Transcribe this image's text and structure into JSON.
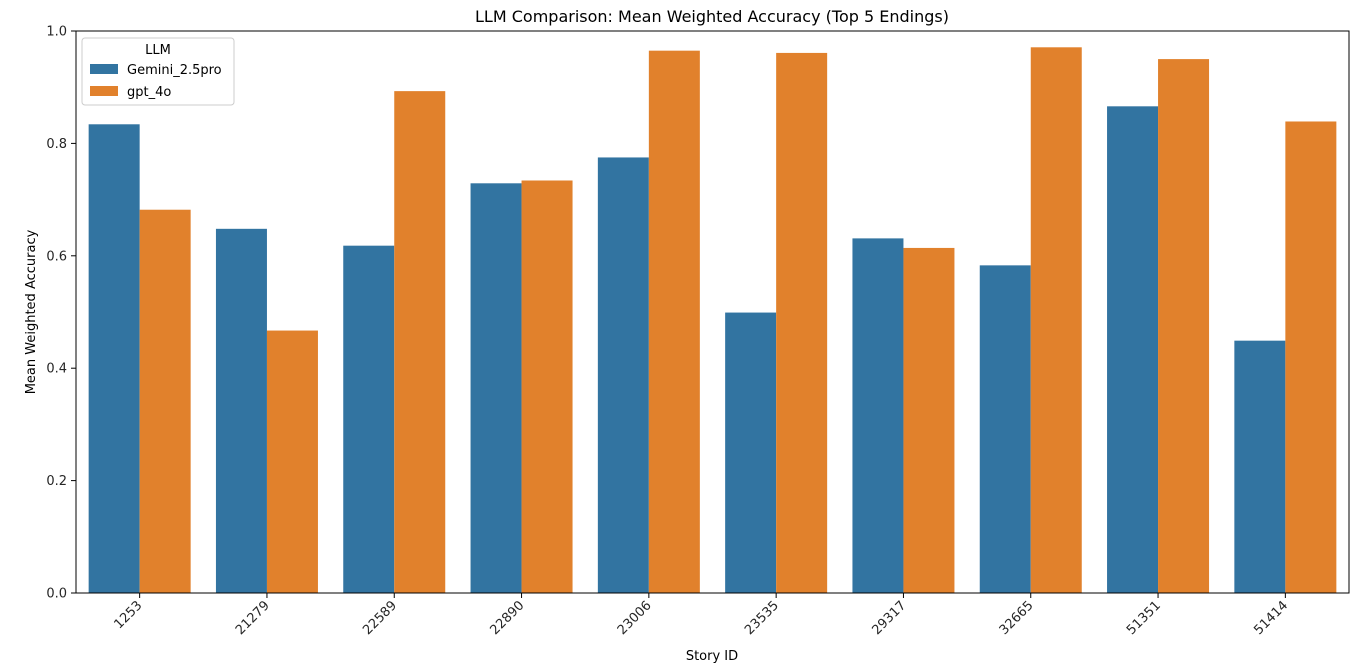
{
  "chart_data": {
    "type": "bar",
    "title": "LLM Comparison: Mean Weighted Accuracy (Top 5 Endings)",
    "xlabel": "Story ID",
    "ylabel": "Mean Weighted Accuracy",
    "ylim": [
      0,
      1.0
    ],
    "yticks": [
      "0.0",
      "0.2",
      "0.4",
      "0.6",
      "0.8",
      "1.0"
    ],
    "categories": [
      "1253",
      "21279",
      "22589",
      "22890",
      "23006",
      "23535",
      "29317",
      "32665",
      "51351",
      "51414"
    ],
    "series": [
      {
        "name": "Gemini_2.5pro",
        "color": "#3274a1",
        "values": [
          0.834,
          0.648,
          0.618,
          0.729,
          0.775,
          0.499,
          0.631,
          0.583,
          0.866,
          0.449
        ]
      },
      {
        "name": "gpt_4o",
        "color": "#e1812c",
        "values": [
          0.682,
          0.467,
          0.893,
          0.734,
          0.965,
          0.961,
          0.614,
          0.971,
          0.95,
          0.839
        ]
      }
    ],
    "legend": {
      "title": "LLM",
      "placement": "top-left"
    },
    "grid": false
  }
}
